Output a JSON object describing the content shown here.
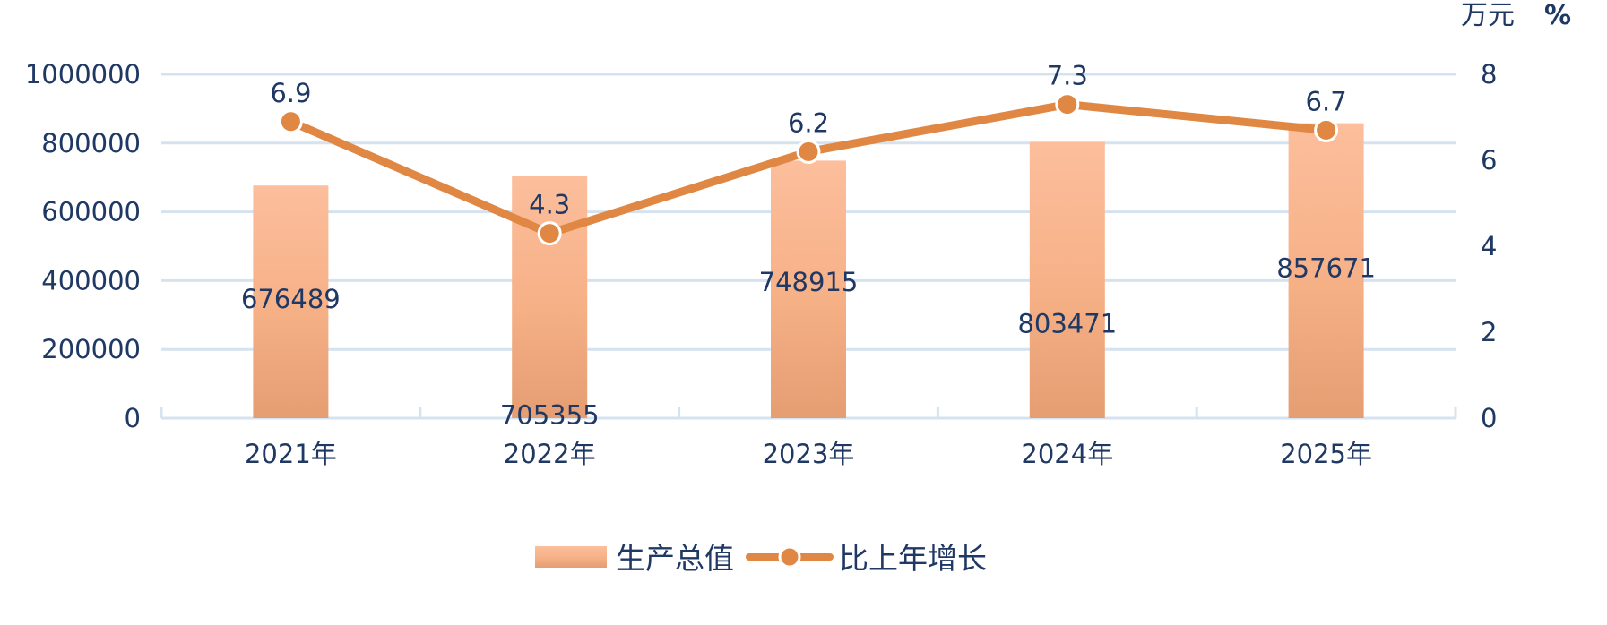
{
  "chart_data": {
    "type": "bar",
    "categories": [
      "2021年",
      "2022年",
      "2023年",
      "2024年",
      "2025年"
    ],
    "series": [
      {
        "name": "生产总值",
        "kind": "bar",
        "axis": "left",
        "values": [
          676489,
          705355,
          748915,
          803471,
          857671
        ]
      },
      {
        "name": "比上年增长",
        "kind": "line",
        "axis": "right",
        "values": [
          6.9,
          4.3,
          6.2,
          7.3,
          6.7
        ]
      }
    ],
    "y_left": {
      "unit": "万元",
      "ylim": [
        0,
        1000000
      ],
      "ticks": [
        0,
        200000,
        400000,
        600000,
        800000,
        1000000
      ]
    },
    "y_right": {
      "unit": "%",
      "ylim": [
        0,
        8
      ],
      "ticks": [
        0,
        2,
        4,
        6,
        8
      ]
    },
    "grid": true,
    "legend": "bottom-center",
    "colors": {
      "bar_top": "#fcbe9c",
      "bar_bottom": "#e59d72",
      "line": "#df8743",
      "text": "#1f3864",
      "grid": "#d4e3ef"
    }
  }
}
